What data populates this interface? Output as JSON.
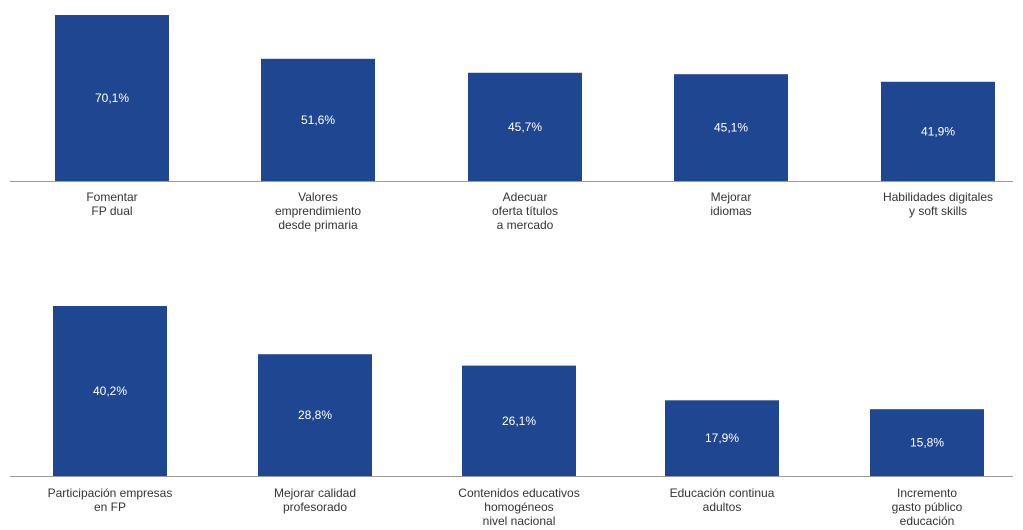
{
  "colors": {
    "bar": "#1f4690",
    "bar_label": "#ffffff",
    "category_label": "#333333",
    "baseline": "#9a9a9a"
  },
  "chart_data": [
    {
      "type": "bar",
      "title": "",
      "xlabel": "",
      "ylabel": "",
      "ylim": [
        0,
        70.1
      ],
      "categories": [
        [
          "Fomentar",
          "FP dual"
        ],
        [
          "Valores",
          "emprendimiento",
          "desde primaria"
        ],
        [
          "Adecuar",
          "oferta títulos",
          "a mercado"
        ],
        [
          "Mejorar",
          "idiomas"
        ],
        [
          "Habilidades digitales",
          "y soft skills"
        ]
      ],
      "values": [
        70.1,
        51.6,
        45.7,
        45.1,
        41.9
      ],
      "labels": [
        "70,1%",
        "51,6%",
        "45,7%",
        "45,1%",
        "41,9%"
      ]
    },
    {
      "type": "bar",
      "title": "",
      "xlabel": "",
      "ylabel": "",
      "ylim": [
        0,
        70.1
      ],
      "categories": [
        [
          "Participación empresas",
          "en FP"
        ],
        [
          "Mejorar calidad",
          "profesorado"
        ],
        [
          "Contenidos educativos",
          "homogéneos",
          "nivel nacional"
        ],
        [
          "Educación continua",
          "adultos"
        ],
        [
          "Incremento",
          "gasto público",
          "educación"
        ]
      ],
      "values": [
        40.2,
        28.8,
        26.1,
        17.9,
        15.8
      ],
      "labels": [
        "40,2%",
        "28,8%",
        "26,1%",
        "17,9%",
        "15,8%"
      ]
    }
  ]
}
